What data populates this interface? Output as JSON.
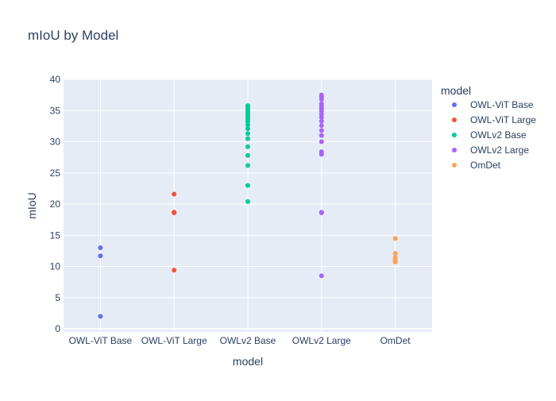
{
  "chart_data": {
    "type": "scatter",
    "title": "mIoU by Model",
    "xlabel": "model",
    "ylabel": "mIoU",
    "ylim": [
      -0.5,
      40
    ],
    "yticks": [
      0,
      5,
      10,
      15,
      20,
      25,
      30,
      35,
      40
    ],
    "categories": [
      "OWL-ViT Base",
      "OWL-ViT Large",
      "OWLv2 Base",
      "OWLv2 Large",
      "OmDet"
    ],
    "grid": true,
    "legend_position": "right",
    "legend_title": "model",
    "background_color": "#e5ecf6",
    "series": [
      {
        "name": "OWL-ViT Base",
        "color": "#636efa",
        "category": "OWL-ViT Base",
        "values": [
          13.0,
          11.7,
          2.0
        ]
      },
      {
        "name": "OWL-ViT Large",
        "color": "#ef553b",
        "category": "OWL-ViT Large",
        "values": [
          21.6,
          18.7,
          18.6,
          9.4
        ]
      },
      {
        "name": "OWLv2 Base",
        "color": "#00cc96",
        "category": "OWLv2 Base",
        "values": [
          35.8,
          35.5,
          35.2,
          34.9,
          34.6,
          34.3,
          34.0,
          33.6,
          33.2,
          32.7,
          32.1,
          31.3,
          30.5,
          29.2,
          27.8,
          26.2,
          23.0,
          20.4
        ]
      },
      {
        "name": "OWLv2 Large",
        "color": "#ab63fa",
        "category": "OWLv2 Large",
        "values": [
          37.5,
          37.2,
          36.8,
          36.1,
          35.7,
          35.3,
          34.9,
          34.4,
          33.9,
          33.3,
          32.6,
          31.8,
          31.0,
          30.0,
          28.4,
          28.0,
          18.7,
          18.6,
          8.5
        ]
      },
      {
        "name": "OmDet",
        "color": "#ffa15a",
        "category": "OmDet",
        "values": [
          14.5,
          12.1,
          11.4,
          11.0,
          10.7
        ]
      }
    ]
  }
}
